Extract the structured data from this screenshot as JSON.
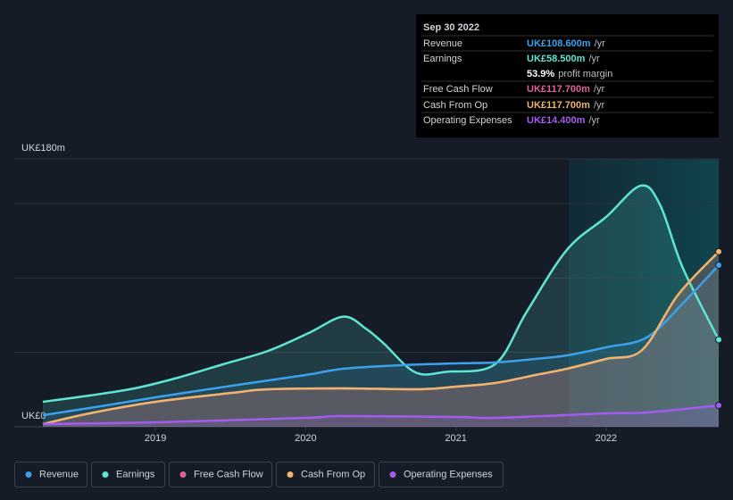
{
  "chart_data": {
    "type": "line",
    "xlim": [
      2018.06,
      2022.75
    ],
    "xticks": [
      2019,
      2020,
      2021,
      2022
    ],
    "ylim": [
      0,
      180
    ],
    "yticks": [
      {
        "value": 0,
        "label": "UK£0"
      },
      {
        "value": 180,
        "label": "UK£180m"
      }
    ],
    "ygrid": [
      50,
      100,
      150
    ],
    "series": [
      {
        "name": "Revenue",
        "color": "#3ba1ec",
        "x": [
          2018.25,
          2018.56,
          2019.0,
          2019.51,
          2020.0,
          2020.25,
          2020.64,
          2021.0,
          2021.26,
          2021.53,
          2021.74,
          2022.0,
          2022.27,
          2022.51,
          2022.75
        ],
        "values": [
          7.8,
          12.6,
          19.8,
          27.6,
          34.8,
          39,
          41.4,
          42.6,
          43.2,
          45.6,
          48,
          53.4,
          60,
          82.8,
          108.6
        ]
      },
      {
        "name": "Earnings",
        "color": "#5fe6d2",
        "x": [
          2018.25,
          2018.56,
          2018.86,
          2019.15,
          2019.45,
          2019.75,
          2020.02,
          2020.25,
          2020.4,
          2020.52,
          2020.73,
          2020.94,
          2021.26,
          2021.47,
          2021.74,
          2022.0,
          2022.23,
          2022.36,
          2022.51,
          2022.75
        ],
        "values": [
          16.8,
          21,
          25.8,
          33,
          42,
          51,
          63,
          74,
          66,
          56,
          36.6,
          37,
          42,
          77,
          119,
          141,
          162,
          149,
          107,
          58.5
        ]
      },
      {
        "name": "Free Cash Flow",
        "color": "#e0609c",
        "x": [
          2018.25,
          2018.56,
          2019.0,
          2019.51,
          2019.75,
          2020.25,
          2020.76,
          2021.0,
          2021.26,
          2021.53,
          2021.74,
          2022.0,
          2022.24,
          2022.48,
          2022.75
        ],
        "values": [
          1.8,
          9,
          16.8,
          22.8,
          25.2,
          25.8,
          25.2,
          27,
          29.4,
          34.8,
          39,
          45.6,
          51.6,
          88.8,
          117.7
        ]
      },
      {
        "name": "Cash From Op",
        "color": "#efb46c",
        "x": [
          2018.25,
          2018.56,
          2019.0,
          2019.51,
          2019.75,
          2020.25,
          2020.76,
          2021.0,
          2021.26,
          2021.53,
          2021.74,
          2022.0,
          2022.24,
          2022.48,
          2022.75
        ],
        "values": [
          1.8,
          9,
          16.8,
          22.8,
          25.2,
          25.8,
          25.2,
          27,
          29.4,
          34.8,
          39,
          45.6,
          51.6,
          88.8,
          117.7
        ]
      },
      {
        "name": "Operating Expenses",
        "color": "#a45cf0",
        "x": [
          2018.25,
          2019.0,
          2020.0,
          2020.25,
          2021.0,
          2021.26,
          2022.0,
          2022.27,
          2022.75
        ],
        "values": [
          1.8,
          3,
          6,
          7.2,
          6.6,
          6,
          9,
          9.6,
          14.4
        ]
      }
    ],
    "tooltip": {
      "date": "Sep 30 2022",
      "rows": [
        {
          "label": "Revenue",
          "value": "UK£108.600m",
          "unit": "/yr"
        },
        {
          "label": "Earnings",
          "value": "UK£58.500m",
          "unit": "/yr"
        },
        {
          "label": "Free Cash Flow",
          "value": "UK£117.700m",
          "unit": "/yr"
        },
        {
          "label": "Cash From Op",
          "value": "UK£117.700m",
          "unit": "/yr"
        },
        {
          "label": "Operating Expenses",
          "value": "UK£14.400m",
          "unit": "/yr"
        }
      ],
      "margin": {
        "value": "53.9%",
        "label": "profit margin"
      }
    }
  }
}
